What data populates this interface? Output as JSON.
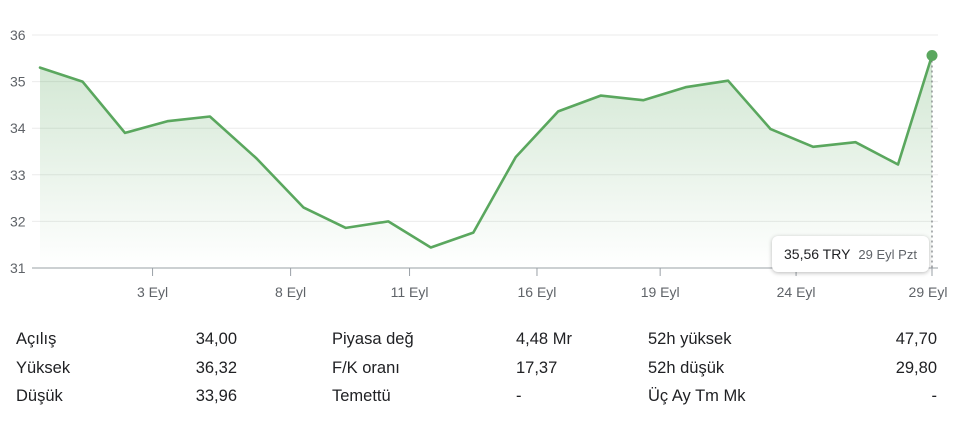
{
  "chart_data": {
    "type": "area",
    "currency": "TRY",
    "ylim": [
      31,
      36
    ],
    "y_ticks": [
      "31",
      "32",
      "33",
      "34",
      "35",
      "36"
    ],
    "x_ticks": [
      "3 Eyl",
      "8 Eyl",
      "11 Eyl",
      "16 Eyl",
      "19 Eyl",
      "24 Eyl",
      "29 Eyl"
    ],
    "x_tick_days": [
      3,
      8,
      11,
      16,
      19,
      24,
      29
    ],
    "points": [
      {
        "day": 0.0,
        "price": 35.3
      },
      {
        "day": 1.0,
        "price": 35.0
      },
      {
        "day": 2.0,
        "price": 33.9
      },
      {
        "day": 3.0,
        "price": 34.15
      },
      {
        "day": 4.0,
        "price": 34.25
      },
      {
        "day": 5.1,
        "price": 33.35
      },
      {
        "day": 6.2,
        "price": 32.3
      },
      {
        "day": 7.2,
        "price": 31.86
      },
      {
        "day": 8.2,
        "price": 32.0
      },
      {
        "day": 9.2,
        "price": 31.44
      },
      {
        "day": 10.2,
        "price": 31.76
      },
      {
        "day": 11.2,
        "price": 33.38
      },
      {
        "day": 12.2,
        "price": 34.36
      },
      {
        "day": 13.2,
        "price": 34.7
      },
      {
        "day": 14.2,
        "price": 34.6
      },
      {
        "day": 15.2,
        "price": 34.88
      },
      {
        "day": 16.2,
        "price": 35.02
      },
      {
        "day": 17.2,
        "price": 33.98
      },
      {
        "day": 18.2,
        "price": 33.6
      },
      {
        "day": 19.2,
        "price": 33.7
      },
      {
        "day": 20.2,
        "price": 33.22
      },
      {
        "day": 21.0,
        "price": 35.56
      }
    ],
    "grid": true,
    "line_color": "#5aa75e",
    "fill_color": "#d9efdc"
  },
  "tooltip": {
    "price": "35,56 TRY",
    "date": "29 Eyl Pzt"
  },
  "stats": [
    [
      {
        "label": "Açılış",
        "value": "34,00"
      },
      {
        "label": "Piyasa değ",
        "value": "4,48 Mr"
      },
      {
        "label": "52h yüksek",
        "value": "47,70"
      }
    ],
    [
      {
        "label": "Yüksek",
        "value": "36,32"
      },
      {
        "label": "F/K oranı",
        "value": "17,37"
      },
      {
        "label": "52h düşük",
        "value": "29,80"
      }
    ],
    [
      {
        "label": "Düşük",
        "value": "33,96"
      },
      {
        "label": "Temettü",
        "value": "-"
      },
      {
        "label": "Üç Ay Tm Mk",
        "value": "-"
      }
    ]
  ]
}
